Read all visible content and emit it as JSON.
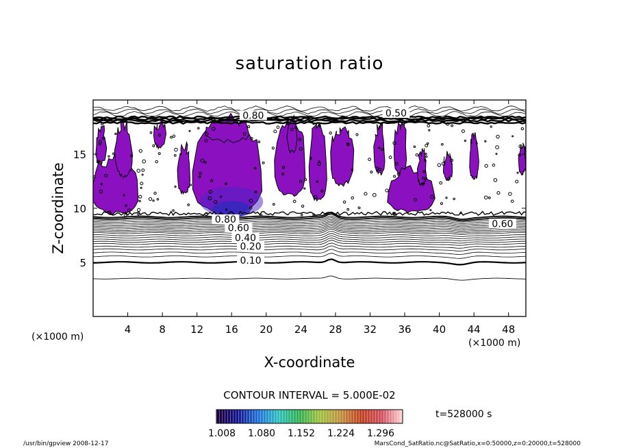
{
  "chart_data": {
    "type": "heatmap",
    "title": "saturation ratio",
    "xlabel": "X-coordinate",
    "ylabel": "Z-coordinate",
    "x_unit": "(×1000 m)",
    "y_unit": "(×1000 m)",
    "xlim": [
      0,
      50
    ],
    "ylim": [
      0,
      20
    ],
    "xticks": [
      "4",
      "8",
      "12",
      "16",
      "20",
      "24",
      "28",
      "32",
      "36",
      "40",
      "44",
      "48"
    ],
    "yticks": [
      "5",
      "10",
      "15"
    ],
    "contour_interval_label": "CONTOUR INTERVAL = 5.000E-02",
    "contour_labels": [
      {
        "x": 18.2,
        "y": 5.0,
        "text": "0.10"
      },
      {
        "x": 18.2,
        "y": 6.3,
        "text": "0.20"
      },
      {
        "x": 17.6,
        "y": 7.1,
        "text": "0.40"
      },
      {
        "x": 16.8,
        "y": 8.0,
        "text": "0.60"
      },
      {
        "x": 15.3,
        "y": 8.8,
        "text": "0.80"
      },
      {
        "x": 18.5,
        "y": 18.4,
        "text": "0.80"
      },
      {
        "x": 35.0,
        "y": 18.6,
        "text": "0.50"
      },
      {
        "x": 47.3,
        "y": 8.4,
        "text": "0.60"
      }
    ],
    "colorbar": {
      "tick_labels": [
        "1.008",
        "1.080",
        "1.152",
        "1.224",
        "1.296"
      ],
      "colors": [
        "#1a0033",
        "#14148c",
        "#2070d8",
        "#30c0c0",
        "#30b050",
        "#a0c040",
        "#c09040",
        "#c04020",
        "#d05060",
        "#ffd8d8"
      ]
    },
    "fill_color": "#8a10c0",
    "core_color": "#1a2cb4",
    "time_label": "t=528000 s"
  },
  "footer": {
    "left": "/usr/bin/gpview   2008-12-17",
    "right": "MarsCond_SatRatio.nc@SatRatio,x=0:50000,z=0:20000,t=528000"
  }
}
